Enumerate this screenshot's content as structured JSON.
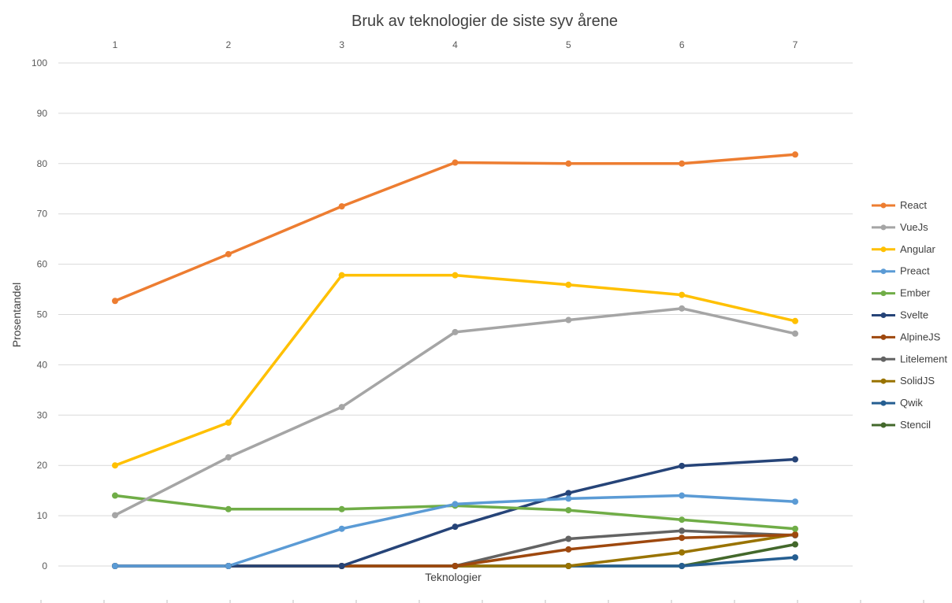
{
  "chart_data": {
    "type": "line",
    "title": "Bruk av teknologier de siste syv årene",
    "xlabel": "Teknologier",
    "ylabel": "Prosentandel",
    "x": [
      1,
      2,
      3,
      4,
      5,
      6,
      7
    ],
    "x_tick_labels": [
      "1",
      "2",
      "3",
      "4",
      "5",
      "6",
      "7"
    ],
    "x_axis_position": "top",
    "ylim": [
      0,
      100
    ],
    "y_ticks": [
      0,
      10,
      20,
      30,
      40,
      50,
      60,
      70,
      80,
      90,
      100
    ],
    "grid": true,
    "legend_position": "right",
    "series": [
      {
        "name": "React",
        "color": "#ed7d31",
        "values": [
          52.7,
          62.0,
          71.5,
          80.2,
          80.0,
          80.0,
          81.8
        ]
      },
      {
        "name": "VueJs",
        "color": "#a5a5a5",
        "values": [
          10.1,
          21.6,
          31.6,
          46.5,
          48.9,
          51.2,
          46.2
        ]
      },
      {
        "name": "Angular",
        "color": "#ffc000",
        "values": [
          20.0,
          28.5,
          57.8,
          57.8,
          55.9,
          53.9,
          48.7
        ]
      },
      {
        "name": "Preact",
        "color": "#5b9bd5",
        "values": [
          0,
          0,
          7.4,
          12.3,
          13.4,
          14.0,
          12.8
        ]
      },
      {
        "name": "Ember",
        "color": "#70ad47",
        "values": [
          14.0,
          11.3,
          11.3,
          12.0,
          11.1,
          9.2,
          7.4
        ]
      },
      {
        "name": "Svelte",
        "color": "#264478",
        "values": [
          0,
          0,
          0,
          7.8,
          14.5,
          19.9,
          21.2
        ]
      },
      {
        "name": "AlpineJS",
        "color": "#9e480e",
        "values": [
          0,
          0,
          0,
          0,
          3.3,
          5.6,
          6.2
        ]
      },
      {
        "name": "Litelement",
        "color": "#636363",
        "values": [
          0,
          0,
          0,
          0,
          5.4,
          7.0,
          6.1
        ]
      },
      {
        "name": "SolidJS",
        "color": "#997300",
        "values": [
          0,
          0,
          0,
          0,
          0,
          2.7,
          6.3
        ]
      },
      {
        "name": "Qwik",
        "color": "#255e91",
        "values": [
          0,
          0,
          0,
          0,
          0,
          0,
          1.7
        ]
      },
      {
        "name": "Stencil",
        "color": "#43682b",
        "values": [
          0,
          0,
          0,
          0,
          0,
          0,
          4.3
        ]
      }
    ]
  }
}
